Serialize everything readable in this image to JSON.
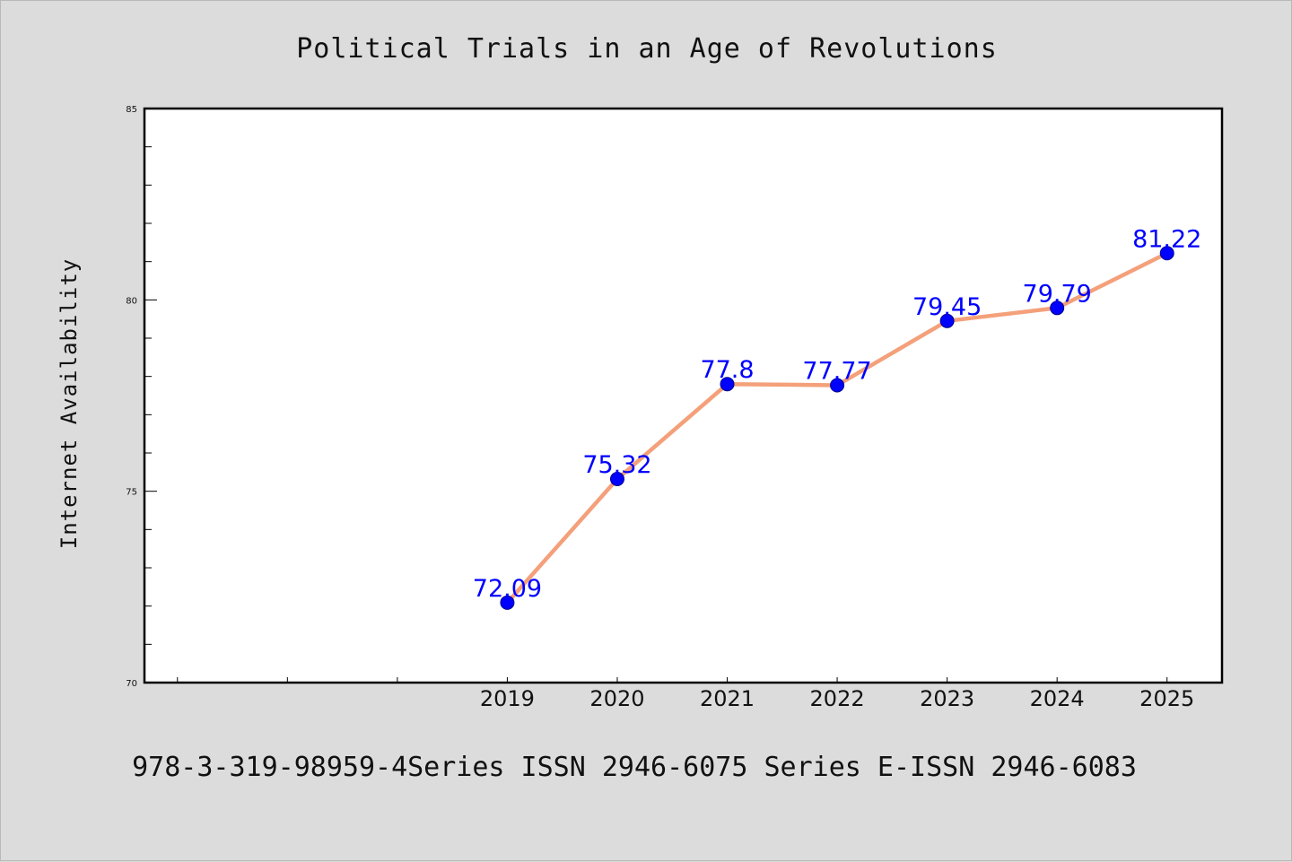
{
  "chart_data": {
    "type": "line",
    "title": "Political Trials in an Age of Revolutions",
    "xlabel": "",
    "ylabel": "Internet Availability",
    "x": [
      "2019",
      "2020",
      "2021",
      "2022",
      "2023",
      "2024",
      "2025"
    ],
    "series": [
      {
        "values": [
          72.09,
          75.32,
          77.8,
          77.77,
          79.45,
          79.79,
          81.22
        ],
        "data_labels": [
          "72.09",
          "75.32",
          "77.8",
          "77.77",
          "79.45",
          "79.79",
          "81.22"
        ],
        "line_color": "#f4a07a",
        "marker_color": "#0000ff"
      }
    ],
    "ylim": [
      70,
      85
    ],
    "yticks": [
      "70",
      "75",
      "80",
      "85"
    ],
    "xlim": [
      2015.7,
      2025.5
    ],
    "grid": false,
    "legend": "none",
    "footer": "978-3-319-98959-4Series ISSN 2946-6075 Series E-ISSN 2946-6083"
  }
}
